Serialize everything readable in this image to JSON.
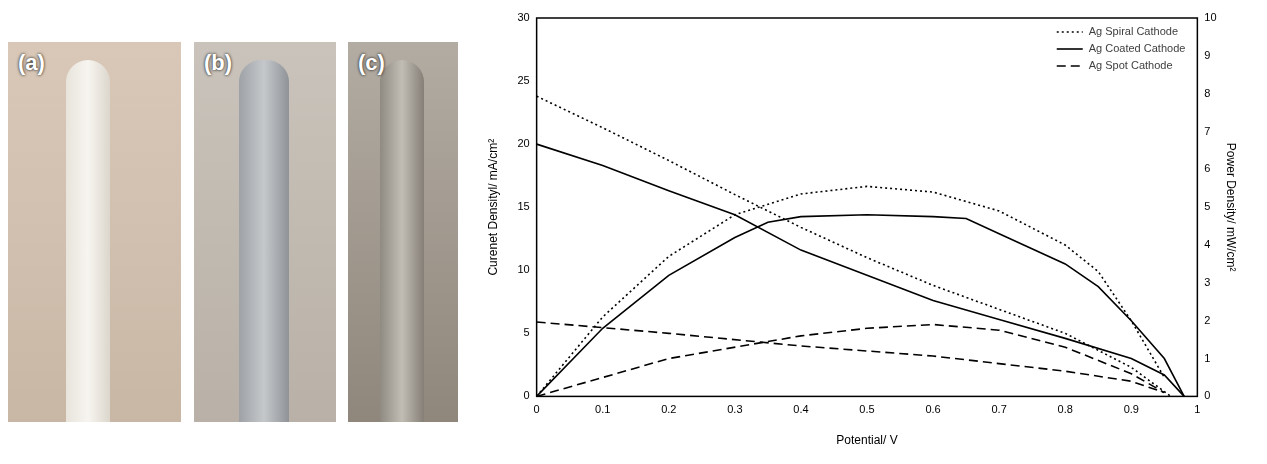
{
  "panels": [
    {
      "label": "(a)"
    },
    {
      "label": "(b)"
    },
    {
      "label": "(c)"
    }
  ],
  "chart_data": {
    "type": "line",
    "x_label": "Potential/ V",
    "y_label": "Curenet Densityl/ mA/cm²",
    "y2_label": "Power Density/ mW/cm²",
    "xlim": [
      0,
      1
    ],
    "xticks": [
      0,
      0.1,
      0.2,
      0.3,
      0.4,
      0.5,
      0.6,
      0.7,
      0.8,
      0.9,
      1
    ],
    "ylim": [
      0,
      30
    ],
    "yticks": [
      0,
      5,
      10,
      15,
      20,
      25,
      30
    ],
    "y2lim": [
      0,
      10
    ],
    "y2ticks": [
      0,
      1,
      2,
      3,
      4,
      5,
      6,
      7,
      8,
      9,
      10
    ],
    "grid": false,
    "legend": "top right",
    "series": [
      {
        "name": "Ag Spiral Cathode",
        "color": "#000000",
        "line_style": "dotted",
        "marker": "none",
        "x": [
          0,
          0.1,
          0.2,
          0.3,
          0.4,
          0.5,
          0.6,
          0.7,
          0.8,
          0.9,
          0.96
        ],
        "values": [
          23.8,
          21.3,
          18.7,
          16.0,
          13.4,
          11.0,
          8.8,
          6.9,
          5.0,
          2.3,
          0
        ]
      },
      {
        "name": "Ag Coated Cathode",
        "color": "#000000",
        "line_style": "solid",
        "marker": "none",
        "x": [
          0,
          0.1,
          0.2,
          0.3,
          0.4,
          0.5,
          0.6,
          0.7,
          0.8,
          0.9,
          0.95,
          0.98
        ],
        "values": [
          20.0,
          18.3,
          16.3,
          14.4,
          11.6,
          9.6,
          7.6,
          6.1,
          4.6,
          3.0,
          1.7,
          0
        ]
      },
      {
        "name": "Ag Spot Cathode",
        "color": "#000000",
        "line_style": "dashed",
        "marker": "none",
        "x": [
          0,
          0.2,
          0.4,
          0.6,
          0.8,
          0.9,
          0.95
        ],
        "values": [
          5.9,
          5.0,
          4.0,
          3.2,
          2.0,
          1.2,
          0.3
        ]
      },
      {
        "name": "Ag Spiral Cathode",
        "color": "#000000",
        "line_style": "dotted",
        "marker": "none",
        "axis": "y2",
        "x": [
          0,
          0.1,
          0.2,
          0.3,
          0.4,
          0.5,
          0.6,
          0.7,
          0.8,
          0.85,
          0.9,
          0.95
        ],
        "values": [
          0,
          2.1,
          3.7,
          4.8,
          5.35,
          5.55,
          5.4,
          4.9,
          4.0,
          3.3,
          2.0,
          0.5
        ]
      },
      {
        "name": "Ag Coated Cathode",
        "color": "#000000",
        "line_style": "solid",
        "marker": "none",
        "axis": "y2",
        "x": [
          0,
          0.1,
          0.2,
          0.3,
          0.35,
          0.4,
          0.5,
          0.6,
          0.65,
          0.7,
          0.8,
          0.85,
          0.9,
          0.95,
          0.98
        ],
        "values": [
          0,
          1.8,
          3.2,
          4.2,
          4.6,
          4.75,
          4.8,
          4.75,
          4.7,
          4.3,
          3.5,
          2.9,
          2.0,
          1.0,
          0
        ]
      },
      {
        "name": "Ag Spot Cathode",
        "color": "#000000",
        "line_style": "dashed",
        "marker": "none",
        "axis": "y2",
        "x": [
          0,
          0.2,
          0.4,
          0.5,
          0.6,
          0.7,
          0.8,
          0.9,
          0.95
        ],
        "values": [
          0,
          1.0,
          1.6,
          1.8,
          1.9,
          1.75,
          1.3,
          0.6,
          0.1
        ]
      }
    ]
  }
}
